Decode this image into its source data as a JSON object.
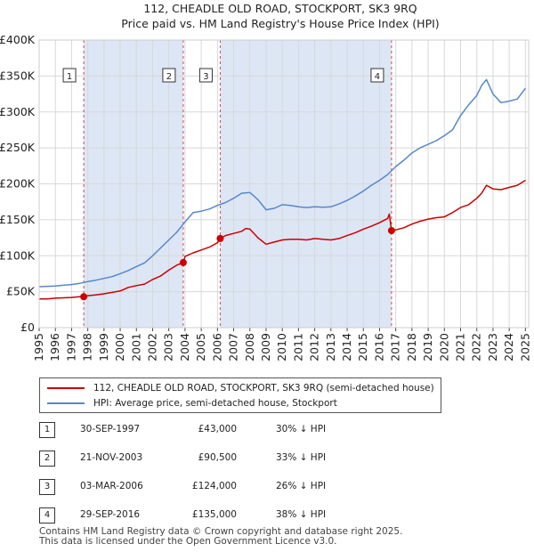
{
  "chart_data": {
    "type": "line",
    "title": "112, CHEADLE OLD ROAD, STOCKPORT, SK3 9RQ",
    "subtitle": "Price paid vs. HM Land Registry's House Price Index (HPI)",
    "x_ticks": [
      "1995",
      "1996",
      "1997",
      "1998",
      "1999",
      "2000",
      "2001",
      "2002",
      "2003",
      "2004",
      "2005",
      "2006",
      "2007",
      "2008",
      "2009",
      "2010",
      "2011",
      "2012",
      "2013",
      "2014",
      "2015",
      "2016",
      "2017",
      "2018",
      "2019",
      "2020",
      "2021",
      "2022",
      "2023",
      "2024",
      "2025"
    ],
    "y_ticks": [
      "£0",
      "£50K",
      "£100K",
      "£150K",
      "£200K",
      "£250K",
      "£300K",
      "£350K",
      "£400K"
    ],
    "xlim": [
      1995,
      2025.2
    ],
    "ylim": [
      0,
      400000
    ],
    "series": [
      {
        "name": "112, CHEADLE OLD ROAD, STOCKPORT, SK3 9RQ (semi-detached house)",
        "color": "#cc0000",
        "x": [
          1995,
          1995.5,
          1996,
          1996.5,
          1997,
          1997.5,
          1997.75,
          1998,
          1998.5,
          1999,
          1999.5,
          2000,
          2000.5,
          2001,
          2001.5,
          2002,
          2002.5,
          2003,
          2003.5,
          2003.89,
          2004,
          2004.5,
          2005,
          2005.5,
          2006,
          2006.17,
          2006.5,
          2007,
          2007.5,
          2007.75,
          2008,
          2008.5,
          2009,
          2009.5,
          2010,
          2010.5,
          2011,
          2011.5,
          2012,
          2012.5,
          2013,
          2013.5,
          2014,
          2014.5,
          2015,
          2015.5,
          2016,
          2016.5,
          2016.6,
          2016.74,
          2017,
          2017.5,
          2018,
          2018.5,
          2019,
          2019.5,
          2020,
          2020.5,
          2021,
          2021.5,
          2022,
          2022.3,
          2022.6,
          2023,
          2023.5,
          2024,
          2024.5,
          2025
        ],
        "values": [
          40000,
          40000,
          41000,
          41500,
          42000,
          43000,
          43000,
          44500,
          45500,
          47000,
          49000,
          51000,
          56000,
          58500,
          60500,
          67000,
          72000,
          80000,
          87000,
          90500,
          99000,
          104000,
          108000,
          112000,
          118000,
          124000,
          128000,
          131000,
          134000,
          138000,
          137000,
          125000,
          116000,
          119000,
          122000,
          123000,
          123000,
          122000,
          124000,
          123000,
          122000,
          124000,
          128000,
          132000,
          137000,
          141000,
          146000,
          152000,
          158000,
          135000,
          136000,
          139000,
          144000,
          148000,
          151000,
          153000,
          154000,
          160000,
          167000,
          171000,
          180000,
          187000,
          198000,
          193000,
          192000,
          195000,
          198000,
          205000
        ]
      },
      {
        "name": "HPI: Average price, semi-detached house, Stockport",
        "color": "#5588cc",
        "x": [
          1995,
          1995.5,
          1996,
          1996.5,
          1997,
          1997.5,
          1998,
          1998.5,
          1999,
          1999.5,
          2000,
          2000.5,
          2001,
          2001.5,
          2002,
          2002.5,
          2003,
          2003.5,
          2004,
          2004.5,
          2005,
          2005.5,
          2006,
          2006.5,
          2007,
          2007.5,
          2008,
          2008.5,
          2009,
          2009.5,
          2010,
          2010.5,
          2011,
          2011.5,
          2012,
          2012.5,
          2013,
          2013.5,
          2014,
          2014.5,
          2015,
          2015.5,
          2016,
          2016.5,
          2017,
          2017.5,
          2018,
          2018.5,
          2019,
          2019.5,
          2020,
          2020.5,
          2021,
          2021.5,
          2022,
          2022.3,
          2022.6,
          2023,
          2023.5,
          2024,
          2024.5,
          2025
        ],
        "values": [
          57000,
          57500,
          58000,
          59000,
          60000,
          61500,
          64000,
          66000,
          68500,
          71000,
          75000,
          79500,
          85000,
          90000,
          100000,
          111000,
          122000,
          133000,
          147000,
          160000,
          162000,
          165000,
          170000,
          174000,
          180000,
          187000,
          188000,
          178000,
          164000,
          166000,
          171000,
          170000,
          168000,
          167000,
          168000,
          167500,
          168000,
          172000,
          177000,
          183000,
          190000,
          198000,
          205000,
          213000,
          224000,
          233000,
          243000,
          250000,
          255000,
          260000,
          267000,
          275000,
          295000,
          310000,
          323000,
          337000,
          345000,
          325000,
          313000,
          315000,
          318000,
          333000
        ]
      }
    ],
    "sales": [
      {
        "id": "1",
        "label": "1",
        "x": 1997.75,
        "value": 43000
      },
      {
        "id": "2",
        "label": "2",
        "x": 2003.89,
        "value": 90500
      },
      {
        "id": "3",
        "label": "3",
        "x": 2006.17,
        "value": 124000
      },
      {
        "id": "4",
        "label": "4",
        "x": 2016.74,
        "value": 135000
      }
    ],
    "shaded_spans": [
      [
        1997.75,
        2003.89
      ],
      [
        2006.17,
        2016.74
      ]
    ],
    "sale_color": "#cc0000",
    "shade_color": "#dde6f5"
  },
  "legend": {
    "red_label": "112, CHEADLE OLD ROAD, STOCKPORT, SK3 9RQ (semi-detached house)",
    "blue_label": "HPI: Average price, semi-detached house, Stockport"
  },
  "transactions": [
    {
      "num": "1",
      "date": "30-SEP-1997",
      "price": "£43,000",
      "hpi": "30% ↓ HPI"
    },
    {
      "num": "2",
      "date": "21-NOV-2003",
      "price": "£90,500",
      "hpi": "33% ↓ HPI"
    },
    {
      "num": "3",
      "date": "03-MAR-2006",
      "price": "£124,000",
      "hpi": "26% ↓ HPI"
    },
    {
      "num": "4",
      "date": "29-SEP-2016",
      "price": "£135,000",
      "hpi": "38% ↓ HPI"
    }
  ],
  "footer": {
    "line1": "Contains HM Land Registry data © Crown copyright and database right 2025.",
    "line2": "This data is licensed under the Open Government Licence v3.0."
  }
}
